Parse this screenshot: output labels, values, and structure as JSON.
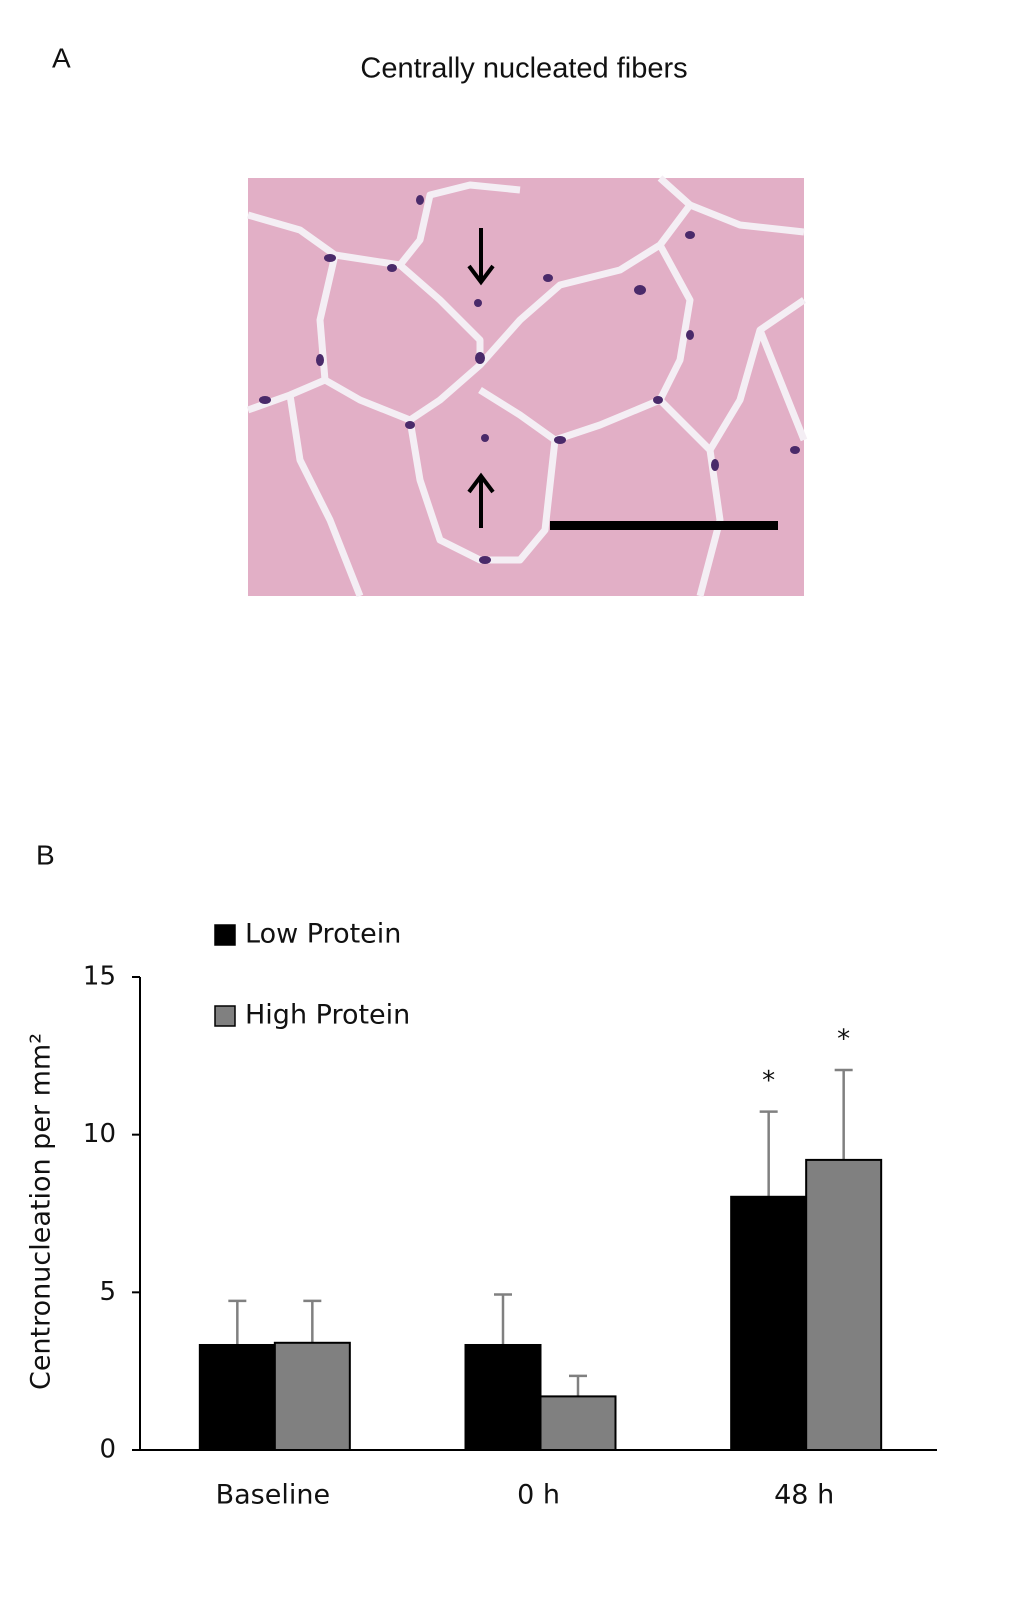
{
  "panel_a": {
    "label": "A",
    "title": "Centrally nucleated fibers"
  },
  "panel_b": {
    "label": "B"
  },
  "chart_data": {
    "type": "bar",
    "y_label": "Centronucleation per mm²",
    "categories": [
      "Baseline",
      "0 h",
      "48 h"
    ],
    "series": [
      {
        "name": "Low Protein",
        "color": "#000000",
        "values": [
          3.33,
          3.33,
          8.03
        ],
        "errors": [
          1.4,
          1.6,
          2.7
        ],
        "annotations": [
          null,
          null,
          "*"
        ]
      },
      {
        "name": "High Protein",
        "color": "#808080",
        "values": [
          3.4,
          1.7,
          9.2
        ],
        "errors": [
          1.33,
          0.65,
          2.85
        ],
        "annotations": [
          null,
          null,
          "*"
        ]
      }
    ],
    "error_color": "#808080",
    "ylim": [
      0,
      15
    ],
    "yticks": [
      0,
      5,
      10,
      15
    ]
  }
}
